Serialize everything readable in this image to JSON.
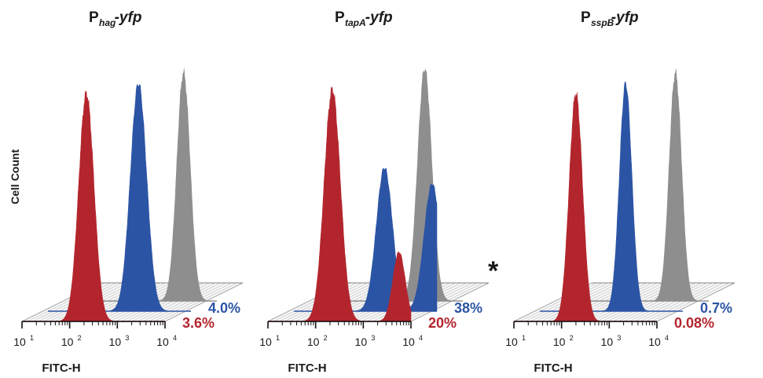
{
  "ylabel": "Cell Count",
  "colors": {
    "red": "#b3252d",
    "blue": "#2c54a5",
    "gray": "#8e8e8e",
    "axis": "#111111"
  },
  "chart_data": [
    {
      "type": "area",
      "title": {
        "main": "P",
        "sub": "hag",
        "suffix": "-yfp"
      },
      "xlabel": "FITC-H",
      "x_scale": "log",
      "xlim": [
        10,
        10000
      ],
      "x_ticks": [
        {
          "base": "10",
          "exp": "1"
        },
        {
          "base": "10",
          "exp": "2"
        },
        {
          "base": "10",
          "exp": "3"
        },
        {
          "base": "10",
          "exp": "4"
        }
      ],
      "series": [
        {
          "color": "red",
          "peaks": [
            {
              "log_center": 2.35,
              "width": 0.16,
              "height": 1.0
            }
          ],
          "percent": "3.6%"
        },
        {
          "color": "blue",
          "peaks": [
            {
              "log_center": 2.9,
              "width": 0.17,
              "height": 1.0
            }
          ],
          "percent": "4.0%"
        },
        {
          "color": "gray",
          "peaks": [
            {
              "log_center": 3.3,
              "width": 0.14,
              "height": 1.0
            }
          ],
          "percent": ""
        }
      ],
      "marker": ""
    },
    {
      "type": "area",
      "title": {
        "main": "P",
        "sub": "tapA",
        "suffix": "-yfp"
      },
      "xlabel": "FITC-H",
      "x_scale": "log",
      "xlim": [
        10,
        10000
      ],
      "x_ticks": [
        {
          "base": "10",
          "exp": "1"
        },
        {
          "base": "10",
          "exp": "2"
        },
        {
          "base": "10",
          "exp": "3"
        },
        {
          "base": "10",
          "exp": "4"
        }
      ],
      "series": [
        {
          "color": "red",
          "peaks": [
            {
              "log_center": 2.35,
              "width": 0.17,
              "height": 1.0
            },
            {
              "log_center": 3.75,
              "width": 0.13,
              "height": 0.3
            }
          ],
          "percent": "20%"
        },
        {
          "color": "blue",
          "peaks": [
            {
              "log_center": 2.9,
              "width": 0.17,
              "height": 0.62
            },
            {
              "log_center": 3.9,
              "width": 0.17,
              "height": 0.55
            }
          ],
          "percent": "38%"
        },
        {
          "color": "gray",
          "peaks": [
            {
              "log_center": 3.2,
              "width": 0.15,
              "height": 1.0
            }
          ],
          "percent": ""
        }
      ],
      "marker": "*"
    },
    {
      "type": "area",
      "title": {
        "main": "P",
        "sub": "sspB",
        "suffix": "-yfp"
      },
      "xlabel": "FITC-H",
      "x_scale": "log",
      "xlim": [
        10,
        10000
      ],
      "x_ticks": [
        {
          "base": "10",
          "exp": "1"
        },
        {
          "base": "10",
          "exp": "2"
        },
        {
          "base": "10",
          "exp": "3"
        },
        {
          "base": "10",
          "exp": "4"
        }
      ],
      "series": [
        {
          "color": "red",
          "peaks": [
            {
              "log_center": 2.3,
              "width": 0.14,
              "height": 1.0
            }
          ],
          "percent": "0.08%"
        },
        {
          "color": "blue",
          "peaks": [
            {
              "log_center": 2.8,
              "width": 0.13,
              "height": 1.0
            }
          ],
          "percent": "0.7%"
        },
        {
          "color": "gray",
          "peaks": [
            {
              "log_center": 3.3,
              "width": 0.13,
              "height": 1.0
            }
          ],
          "percent": ""
        }
      ],
      "marker": ""
    }
  ]
}
